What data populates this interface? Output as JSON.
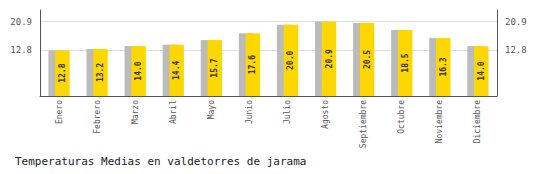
{
  "chart_data": {
    "type": "bar",
    "title": "Temperaturas Medias en valdetorres de jarama",
    "categories": [
      "Enero",
      "Febrero",
      "Marzo",
      "Abril",
      "Mayo",
      "Junio",
      "Julio",
      "Agosto",
      "Septiembre",
      "Octubre",
      "Noviembre",
      "Diciembre"
    ],
    "series": [
      {
        "color": "#BBBBBB",
        "values": [
          12.8,
          13.2,
          14.0,
          14.4,
          15.7,
          17.6,
          20.0,
          20.9,
          20.5,
          18.5,
          16.3,
          14.0
        ]
      },
      {
        "color": "#FFD700",
        "values": [
          12.8,
          13.2,
          14.0,
          14.4,
          15.7,
          17.6,
          20.0,
          20.9,
          20.5,
          18.5,
          16.3,
          14.0
        ],
        "data_labels": true,
        "value_labels": [
          "12.8",
          "13.2",
          "14.0",
          "14.4",
          "15.7",
          "17.6",
          "20.0",
          "20.9",
          "20.5",
          "18.5",
          "16.3",
          "14.0"
        ]
      }
    ],
    "ylim": [
      0,
      24.1395
    ],
    "yticks": [
      12.8,
      20.9
    ],
    "y2lim": [
      0,
      24.1395
    ],
    "y2ticks": [
      12.8,
      20.9
    ],
    "grid": true
  }
}
